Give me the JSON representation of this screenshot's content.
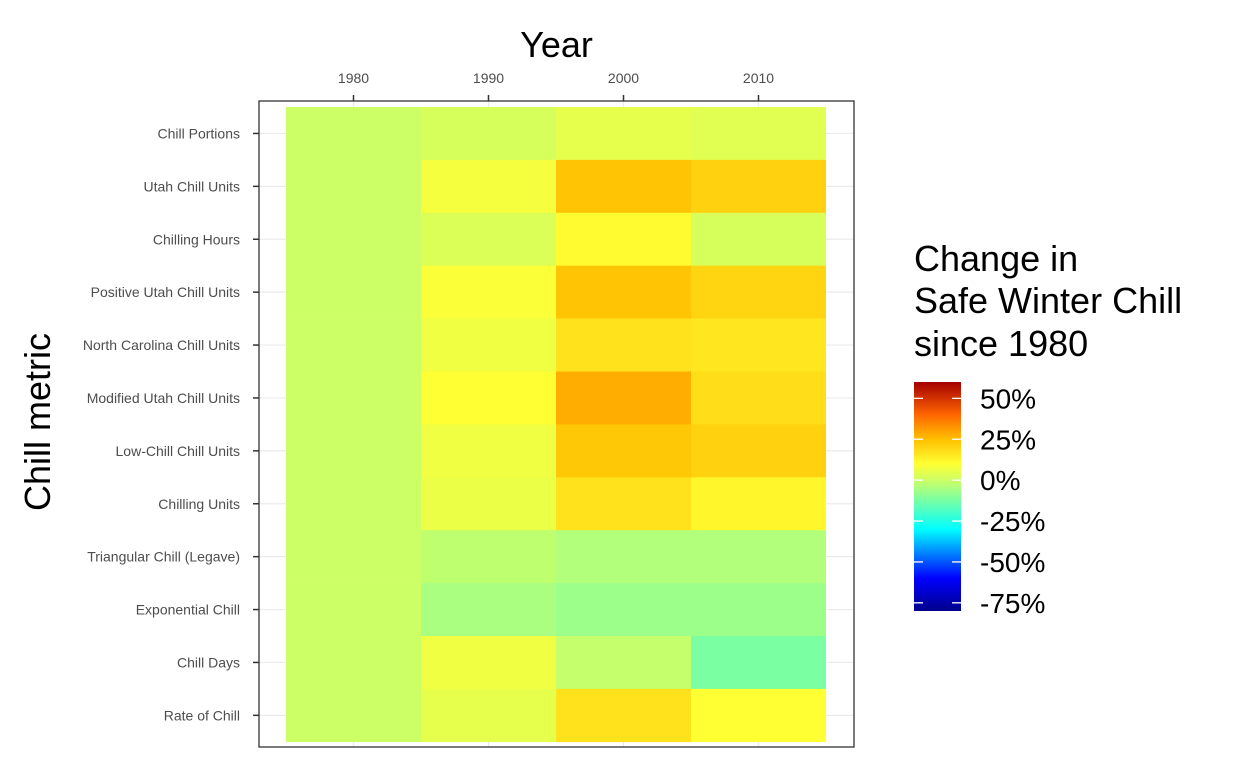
{
  "chart_data": {
    "type": "heatmap",
    "xlabel": "Year",
    "ylabel": "Chill metric",
    "x_axis_position": "top",
    "x": [
      1980,
      1990,
      2000,
      2010
    ],
    "y": [
      "Chill Portions",
      "Utah Chill Units",
      "Chilling Hours",
      "Positive Utah Chill Units",
      "North Carolina Chill Units",
      "Modified Utah Chill Units",
      "Low-Chill Chill Units",
      "Chilling Units",
      "Triangular Chill (Legave)",
      "Exponential Chill",
      "Chill Days",
      "Rate of Chill"
    ],
    "values": [
      [
        0,
        2,
        5,
        4
      ],
      [
        0,
        8,
        24,
        21
      ],
      [
        0,
        3,
        11,
        2
      ],
      [
        0,
        9,
        24,
        20
      ],
      [
        0,
        7,
        17,
        16
      ],
      [
        0,
        10,
        28,
        18
      ],
      [
        0,
        7,
        23,
        21
      ],
      [
        0,
        6,
        17,
        12
      ],
      [
        0,
        -2,
        -4,
        -4
      ],
      [
        0,
        -5,
        -7,
        -7
      ],
      [
        0,
        7,
        -1,
        -12
      ],
      [
        0,
        5,
        17,
        10
      ]
    ],
    "legend": {
      "title_lines": [
        "Change in",
        "Safe Winter Chill",
        "since 1980"
      ],
      "placement": "right",
      "breaks": [
        "50%",
        "25%",
        "0%",
        "-25%",
        "-50%",
        "-75%"
      ],
      "break_values": [
        50,
        25,
        0,
        -25,
        -50,
        -75
      ],
      "range": [
        -80,
        60
      ],
      "colors": [
        "#00008B",
        "#0000FF",
        "#00FFFF",
        "#CCFF66",
        "#FFFF33",
        "#FFC000",
        "#FF6600",
        "#A50000"
      ],
      "color_stops": [
        -80,
        -60,
        -30,
        0,
        10,
        25,
        40,
        60
      ]
    },
    "grid": true
  }
}
